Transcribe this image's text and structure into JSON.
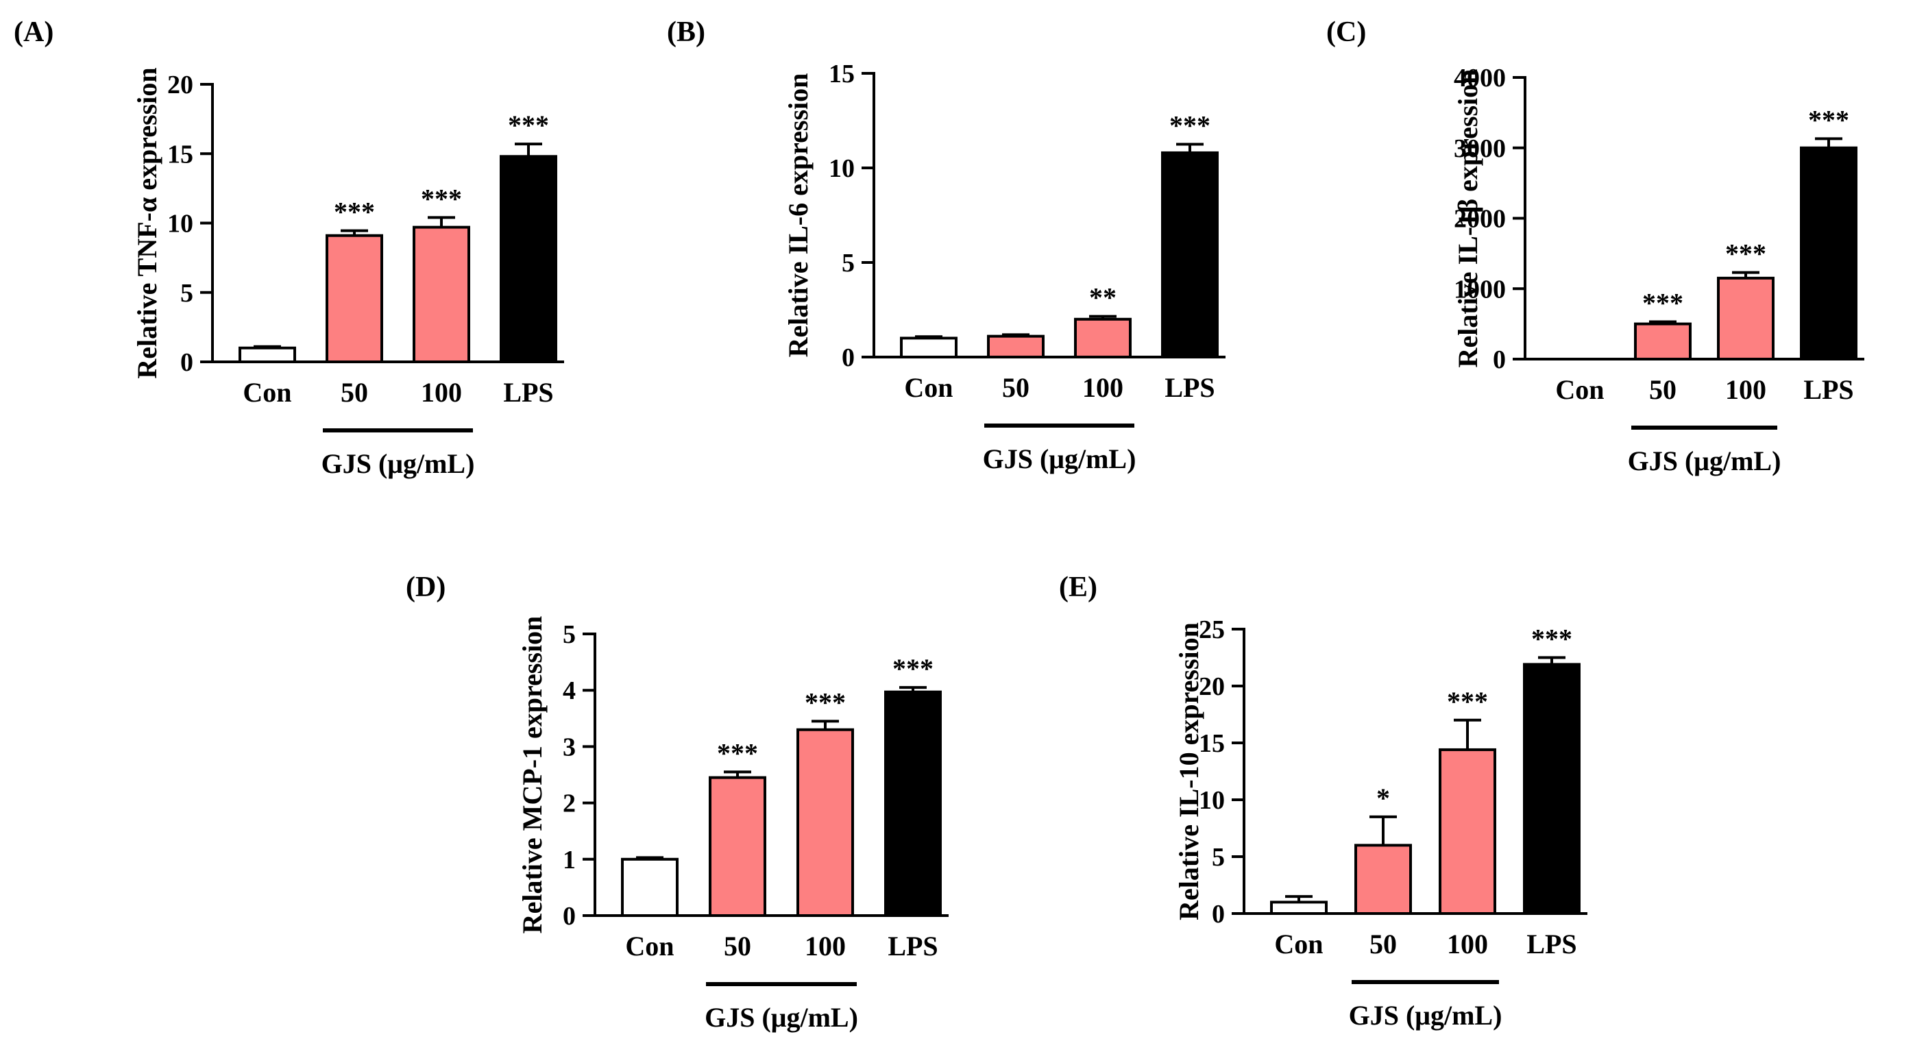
{
  "colors": {
    "control_fill": "#ffffff",
    "gjs_fill": "#fd8081",
    "lps_fill": "#000000",
    "stroke": "#000000"
  },
  "chart_data": [
    {
      "panel": "(A)",
      "type": "bar",
      "ylabel": "Relative TNF-α expression",
      "xgroup_label": "GJS (μg/mL)",
      "categories": [
        "Con",
        "50",
        "100",
        "LPS"
      ],
      "values": [
        1.0,
        9.1,
        9.7,
        14.8
      ],
      "errors": [
        0.1,
        0.35,
        0.7,
        0.9
      ],
      "significance": [
        "",
        "***",
        "***",
        "***"
      ],
      "ylim": [
        0,
        20
      ],
      "yticks": [
        0,
        5,
        10,
        15,
        20
      ]
    },
    {
      "panel": "(B)",
      "type": "bar",
      "ylabel": "Relative IL-6 expression",
      "xgroup_label": "GJS (μg/mL)",
      "categories": [
        "Con",
        "50",
        "100",
        "LPS"
      ],
      "values": [
        1.0,
        1.1,
        2.0,
        10.8
      ],
      "errors": [
        0.08,
        0.08,
        0.15,
        0.45
      ],
      "significance": [
        "",
        "",
        "**",
        "***"
      ],
      "ylim": [
        0,
        15
      ],
      "yticks": [
        0,
        5,
        10,
        15
      ]
    },
    {
      "panel": "(C)",
      "type": "bar",
      "ylabel": "Relative IL-1β expression",
      "xgroup_label": "GJS (μg/mL)",
      "categories": [
        "Con",
        "50",
        "100",
        "LPS"
      ],
      "values": [
        1,
        500,
        1150,
        3000
      ],
      "errors": [
        0,
        30,
        80,
        130
      ],
      "significance": [
        "",
        "***",
        "***",
        "***"
      ],
      "ylim": [
        0,
        4000
      ],
      "yticks": [
        0,
        1000,
        2000,
        3000,
        4000
      ]
    },
    {
      "panel": "(D)",
      "type": "bar",
      "ylabel": "Relative MCP-1 expression",
      "xgroup_label": "GJS (μg/mL)",
      "categories": [
        "Con",
        "50",
        "100",
        "LPS"
      ],
      "values": [
        1.0,
        2.45,
        3.3,
        3.97
      ],
      "errors": [
        0.03,
        0.1,
        0.15,
        0.08
      ],
      "significance": [
        "",
        "***",
        "***",
        "***"
      ],
      "ylim": [
        0,
        5
      ],
      "yticks": [
        0,
        1,
        2,
        3,
        4,
        5
      ]
    },
    {
      "panel": "(E)",
      "type": "bar",
      "ylabel": "Relative IL-10 expression",
      "xgroup_label": "GJS (μg/mL)",
      "categories": [
        "Con",
        "50",
        "100",
        "LPS"
      ],
      "values": [
        1.0,
        6.0,
        14.4,
        21.9
      ],
      "errors": [
        0.5,
        2.5,
        2.6,
        0.6
      ],
      "significance": [
        "",
        "*",
        "***",
        "***"
      ],
      "ylim": [
        0,
        25
      ],
      "yticks": [
        0,
        5,
        10,
        15,
        20,
        25
      ]
    }
  ]
}
